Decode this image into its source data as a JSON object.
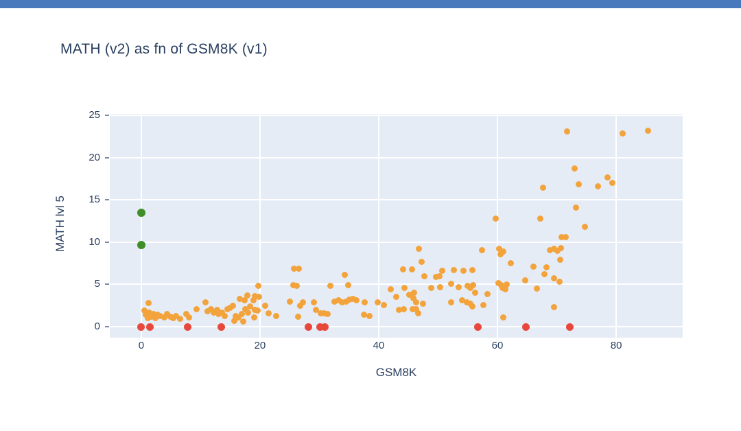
{
  "page": {
    "background": "#ffffff",
    "topbar_color": "#4779bc",
    "text_color": "#2a3f5f",
    "plot_background": "#e5ecf6",
    "gridline_color": "#ffffff"
  },
  "chart_data": {
    "type": "scatter",
    "title": "MATH (v2) as fn of GSM8K (v1)",
    "xlabel": "GSM8K",
    "ylabel": "MATH lvl 5",
    "xlim": [
      -5.3,
      91.2
    ],
    "ylim": [
      -1.3,
      25.2
    ],
    "x_ticks": [
      0,
      20,
      40,
      60,
      80
    ],
    "y_ticks": [
      0,
      5,
      10,
      15,
      20,
      25
    ],
    "grid": true,
    "legend": false,
    "series": [
      {
        "name": "orange-points",
        "color": "#f2a33c",
        "marker_size": 9,
        "points": [
          [
            0.5,
            1.9
          ],
          [
            0.8,
            1.4
          ],
          [
            1.1,
            1.0
          ],
          [
            1.2,
            2.8
          ],
          [
            1.4,
            1.7
          ],
          [
            1.7,
            1.2
          ],
          [
            2.0,
            1.5
          ],
          [
            2.4,
            1.0
          ],
          [
            2.7,
            1.4
          ],
          [
            3.2,
            1.3
          ],
          [
            3.9,
            1.1
          ],
          [
            4.4,
            1.5
          ],
          [
            4.9,
            1.2
          ],
          [
            5.4,
            1.0
          ],
          [
            5.9,
            1.3
          ],
          [
            6.5,
            0.9
          ],
          [
            7.6,
            1.5
          ],
          [
            8.1,
            1.1
          ],
          [
            9.3,
            2.1
          ],
          [
            10.8,
            2.9
          ],
          [
            11.2,
            1.8
          ],
          [
            11.8,
            2.1
          ],
          [
            12.2,
            1.7
          ],
          [
            12.8,
            2.0
          ],
          [
            13.0,
            1.5
          ],
          [
            13.6,
            1.7
          ],
          [
            14.0,
            1.3
          ],
          [
            14.5,
            2.1
          ],
          [
            15.0,
            2.2
          ],
          [
            15.5,
            2.5
          ],
          [
            15.7,
            0.7
          ],
          [
            15.9,
            1.3
          ],
          [
            16.4,
            1.1
          ],
          [
            16.6,
            3.3
          ],
          [
            16.9,
            1.5
          ],
          [
            17.2,
            0.6
          ],
          [
            17.4,
            3.1
          ],
          [
            17.5,
            2.1
          ],
          [
            17.9,
            3.7
          ],
          [
            18.0,
            1.7
          ],
          [
            18.3,
            2.4
          ],
          [
            18.9,
            3.1
          ],
          [
            19.0,
            1.1
          ],
          [
            19.1,
            2.0
          ],
          [
            19.1,
            3.6
          ],
          [
            19.6,
            1.9
          ],
          [
            19.7,
            4.8
          ],
          [
            19.8,
            3.5
          ],
          [
            20.9,
            2.5
          ],
          [
            21.4,
            1.6
          ],
          [
            22.7,
            1.3
          ],
          [
            25.0,
            3.0
          ],
          [
            25.6,
            4.9
          ],
          [
            25.7,
            6.9
          ],
          [
            26.2,
            4.8
          ],
          [
            26.4,
            1.2
          ],
          [
            26.5,
            6.9
          ],
          [
            26.8,
            2.5
          ],
          [
            27.2,
            2.9
          ],
          [
            29.1,
            2.9
          ],
          [
            29.4,
            2.0
          ],
          [
            30.2,
            1.6
          ],
          [
            30.8,
            1.6
          ],
          [
            31.4,
            1.5
          ],
          [
            31.9,
            4.8
          ],
          [
            32.5,
            3.0
          ],
          [
            33.2,
            3.1
          ],
          [
            33.8,
            2.9
          ],
          [
            34.3,
            6.1
          ],
          [
            34.5,
            3.0
          ],
          [
            34.9,
            4.9
          ],
          [
            35.1,
            3.2
          ],
          [
            35.7,
            3.3
          ],
          [
            36.2,
            3.1
          ],
          [
            37.5,
            1.4
          ],
          [
            37.6,
            2.9
          ],
          [
            38.4,
            1.3
          ],
          [
            39.8,
            2.9
          ],
          [
            40.9,
            2.6
          ],
          [
            42.0,
            4.4
          ],
          [
            43.0,
            3.5
          ],
          [
            43.4,
            2.0
          ],
          [
            44.1,
            6.8
          ],
          [
            44.2,
            2.1
          ],
          [
            44.3,
            4.6
          ],
          [
            45.2,
            3.8
          ],
          [
            45.6,
            6.8
          ],
          [
            45.7,
            2.1
          ],
          [
            45.8,
            3.4
          ],
          [
            45.9,
            4.0
          ],
          [
            46.3,
            2.1
          ],
          [
            46.3,
            2.9
          ],
          [
            46.6,
            1.6
          ],
          [
            46.8,
            9.2
          ],
          [
            47.2,
            7.7
          ],
          [
            47.4,
            2.7
          ],
          [
            47.7,
            6.0
          ],
          [
            48.9,
            4.6
          ],
          [
            49.7,
            5.9
          ],
          [
            50.2,
            6.0
          ],
          [
            50.4,
            4.7
          ],
          [
            50.7,
            6.6
          ],
          [
            52.2,
            2.9
          ],
          [
            52.2,
            5.1
          ],
          [
            52.7,
            6.7
          ],
          [
            53.5,
            4.7
          ],
          [
            54.0,
            3.1
          ],
          [
            54.3,
            6.6
          ],
          [
            54.8,
            2.9
          ],
          [
            55.0,
            4.8
          ],
          [
            55.4,
            2.7
          ],
          [
            55.4,
            4.6
          ],
          [
            55.8,
            2.4
          ],
          [
            55.8,
            6.7
          ],
          [
            55.9,
            4.9
          ],
          [
            56.2,
            4.0
          ],
          [
            57.4,
            9.1
          ],
          [
            57.6,
            2.6
          ],
          [
            58.3,
            3.9
          ],
          [
            59.7,
            12.8
          ],
          [
            60.2,
            5.2
          ],
          [
            60.3,
            9.2
          ],
          [
            60.5,
            8.6
          ],
          [
            60.6,
            4.9
          ],
          [
            60.9,
            4.6
          ],
          [
            61.0,
            1.1
          ],
          [
            61.0,
            8.9
          ],
          [
            61.3,
            4.4
          ],
          [
            61.6,
            5.0
          ],
          [
            62.3,
            7.5
          ],
          [
            64.7,
            5.5
          ],
          [
            66.1,
            7.1
          ],
          [
            66.6,
            4.5
          ],
          [
            67.2,
            12.8
          ],
          [
            67.7,
            16.5
          ],
          [
            67.9,
            6.2
          ],
          [
            68.3,
            7.0
          ],
          [
            68.8,
            9.1
          ],
          [
            69.5,
            2.3
          ],
          [
            69.5,
            5.7
          ],
          [
            69.5,
            9.2
          ],
          [
            70.1,
            9.0
          ],
          [
            70.4,
            5.3
          ],
          [
            70.6,
            7.9
          ],
          [
            70.7,
            9.3
          ],
          [
            70.8,
            10.6
          ],
          [
            71.5,
            10.6
          ],
          [
            71.7,
            23.1
          ],
          [
            73.0,
            18.7
          ],
          [
            73.2,
            14.1
          ],
          [
            73.7,
            16.9
          ],
          [
            74.7,
            11.8
          ],
          [
            76.9,
            16.6
          ],
          [
            78.6,
            17.7
          ],
          [
            79.3,
            17.0
          ],
          [
            81.1,
            22.9
          ],
          [
            85.4,
            23.2
          ]
        ]
      },
      {
        "name": "red-points",
        "color": "#e8473c",
        "marker_size": 11,
        "points": [
          [
            0,
            0
          ],
          [
            1.5,
            0
          ],
          [
            7.8,
            0
          ],
          [
            13.5,
            0
          ],
          [
            28.2,
            0
          ],
          [
            30.1,
            0
          ],
          [
            30.9,
            0
          ],
          [
            56.7,
            0
          ],
          [
            64.8,
            0
          ],
          [
            72.2,
            0
          ]
        ]
      },
      {
        "name": "green-points",
        "color": "#3f8e2a",
        "marker_size": 12,
        "points": [
          [
            0,
            13.5
          ],
          [
            0,
            9.7
          ]
        ]
      }
    ]
  }
}
